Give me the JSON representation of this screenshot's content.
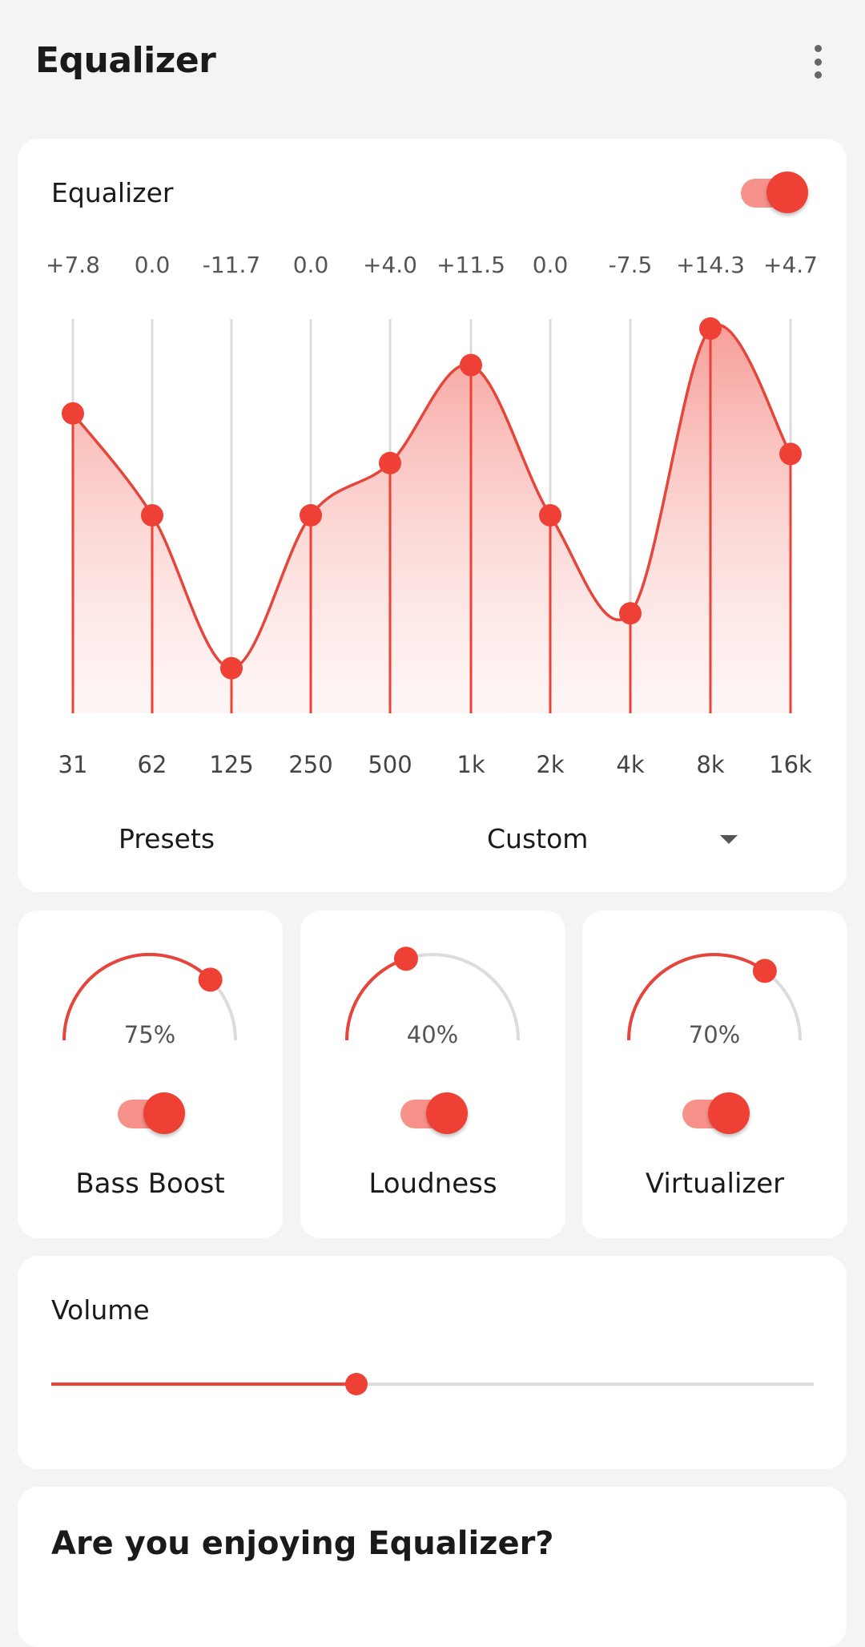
{
  "header": {
    "title": "Equalizer",
    "menu_icon": "more-vert-icon"
  },
  "equalizer": {
    "label": "Equalizer",
    "enabled": true,
    "range_db": [
      -15,
      15
    ],
    "bands": [
      {
        "freq": "31",
        "value": 7.8,
        "label": "+7.8"
      },
      {
        "freq": "62",
        "value": 0.0,
        "label": "0.0"
      },
      {
        "freq": "125",
        "value": -11.7,
        "label": "-11.7"
      },
      {
        "freq": "250",
        "value": 0.0,
        "label": "0.0"
      },
      {
        "freq": "500",
        "value": 4.0,
        "label": "+4.0"
      },
      {
        "freq": "1k",
        "value": 11.5,
        "label": "+11.5"
      },
      {
        "freq": "2k",
        "value": 0.0,
        "label": "0.0"
      },
      {
        "freq": "4k",
        "value": -7.5,
        "label": "-7.5"
      },
      {
        "freq": "8k",
        "value": 14.3,
        "label": "+14.3"
      },
      {
        "freq": "16k",
        "value": 4.7,
        "label": "+4.7"
      }
    ],
    "presets_label": "Presets",
    "preset_value": "Custom"
  },
  "effects": [
    {
      "name": "Bass Boost",
      "percent": 75,
      "label": "75%",
      "enabled": true
    },
    {
      "name": "Loudness",
      "percent": 40,
      "label": "40%",
      "enabled": true
    },
    {
      "name": "Virtualizer",
      "percent": 70,
      "label": "70%",
      "enabled": true
    }
  ],
  "volume": {
    "label": "Volume",
    "value": 0.4
  },
  "feedback": {
    "title": "Are you enjoying Equalizer?"
  },
  "colors": {
    "accent": "#ee4035",
    "accent_light": "#f7928b",
    "track": "#dddddd",
    "background": "#f4f4f4"
  }
}
